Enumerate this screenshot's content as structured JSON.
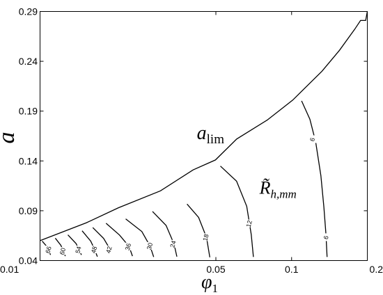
{
  "chart_data": {
    "type": "line",
    "title": "",
    "xlabel": "φ",
    "xlabel_sub": "1",
    "ylabel": "a",
    "xscale": "log",
    "xlim": [
      0.01,
      0.2
    ],
    "ylim": [
      0.04,
      0.29
    ],
    "xticks": [
      0.01,
      0.05,
      0.1,
      0.2
    ],
    "xtick_labels": [
      "0.01",
      "0.05",
      "0.1",
      "0.2"
    ],
    "yticks": [
      0.04,
      0.09,
      0.14,
      0.19,
      0.24,
      0.29
    ],
    "ytick_labels": [
      "0.04",
      "0.09",
      "0.14",
      "0.19",
      "0.24",
      "0.29"
    ],
    "grid": false,
    "legend": "none",
    "boundary": {
      "label": "a",
      "label_sub": "lim",
      "label_at": [
        0.042,
        0.162
      ],
      "points": [
        [
          0.01,
          0.06
        ],
        [
          0.0153,
          0.078
        ],
        [
          0.0205,
          0.093
        ],
        [
          0.0301,
          0.11
        ],
        [
          0.0406,
          0.131
        ],
        [
          0.0498,
          0.141
        ],
        [
          0.0605,
          0.162
        ],
        [
          0.08,
          0.181
        ],
        [
          0.101,
          0.201
        ],
        [
          0.132,
          0.23
        ],
        [
          0.155,
          0.251
        ],
        [
          0.178,
          0.272
        ],
        [
          0.188,
          0.281
        ],
        [
          0.197,
          0.281
        ],
        [
          0.2,
          0.29
        ]
      ]
    },
    "contour_annotation": {
      "text": "R̃",
      "sub": "h,mm",
      "at": [
        0.0745,
        0.107
      ]
    },
    "contours": [
      {
        "level": "66",
        "label_at": [
          0.0108,
          0.0508
        ],
        "points": [
          [
            0.0102,
            0.0595
          ],
          [
            0.0107,
            0.0534
          ],
          [
            0.0109,
            0.0489
          ],
          [
            0.011,
            0.0457
          ]
        ]
      },
      {
        "level": "60",
        "label_at": [
          0.0123,
          0.0493
        ],
        "points": [
          [
            0.0115,
            0.0625
          ],
          [
            0.0121,
            0.0553
          ],
          [
            0.0124,
            0.0493
          ],
          [
            0.0126,
            0.0445
          ]
        ]
      },
      {
        "level": "54",
        "label_at": [
          0.0142,
          0.0508
        ],
        "points": [
          [
            0.0129,
            0.0658
          ],
          [
            0.0139,
            0.0571
          ],
          [
            0.0143,
            0.0508
          ],
          [
            0.0146,
            0.0457
          ]
        ]
      },
      {
        "level": "48",
        "label_at": [
          0.0164,
          0.0508
        ],
        "points": [
          [
            0.0147,
            0.0699
          ],
          [
            0.0159,
            0.0595
          ],
          [
            0.0165,
            0.0508
          ],
          [
            0.0169,
            0.0439
          ]
        ]
      },
      {
        "level": "42",
        "label_at": [
          0.0188,
          0.0508
        ],
        "points": [
          [
            0.0162,
            0.0731
          ],
          [
            0.0179,
            0.0622
          ],
          [
            0.0187,
            0.0541
          ],
          [
            0.0191,
            0.0475
          ]
        ]
      },
      {
        "level": "36",
        "label_at": [
          0.0224,
          0.0538
        ],
        "points": [
          [
            0.0183,
            0.0774
          ],
          [
            0.0207,
            0.0656
          ],
          [
            0.0226,
            0.0541
          ],
          [
            0.0233,
            0.0445
          ]
        ]
      },
      {
        "level": "30",
        "label_at": [
          0.0273,
          0.0544
        ],
        "points": [
          [
            0.0219,
            0.0818
          ],
          [
            0.0254,
            0.0691
          ],
          [
            0.0274,
            0.0544
          ],
          [
            0.0283,
            0.0436
          ]
        ]
      },
      {
        "level": "24",
        "label_at": [
          0.0338,
          0.0565
        ],
        "points": [
          [
            0.028,
            0.0893
          ],
          [
            0.0317,
            0.0753
          ],
          [
            0.0341,
            0.0565
          ],
          [
            0.035,
            0.0439
          ]
        ]
      },
      {
        "level": "18",
        "label_at": [
          0.0456,
          0.0631
        ],
        "points": [
          [
            0.0384,
            0.0967
          ],
          [
            0.0427,
            0.0833
          ],
          [
            0.0459,
            0.0631
          ],
          [
            0.0473,
            0.0433
          ]
        ]
      },
      {
        "level": "12",
        "label_at": [
          0.0678,
          0.0769
        ],
        "points": [
          [
            0.0521,
            0.1348
          ],
          [
            0.0604,
            0.1197
          ],
          [
            0.0663,
            0.0945
          ],
          [
            0.0691,
            0.0661
          ],
          [
            0.0705,
            0.0436
          ]
        ]
      },
      {
        "level": "6",
        "label_at": [
          0.121,
          0.1615
        ],
        "points": [
          [
            0.1096,
            0.2003
          ],
          [
            0.1182,
            0.1818
          ],
          [
            0.1246,
            0.1591
          ],
          [
            0.1307,
            0.1252
          ],
          [
            0.1344,
            0.0937
          ],
          [
            0.137,
            0.0661
          ],
          [
            0.1384,
            0.0436
          ]
        ]
      },
      {
        "level": "6",
        "label_at": [
          0.1371,
          0.0631
        ],
        "points": []
      }
    ]
  }
}
